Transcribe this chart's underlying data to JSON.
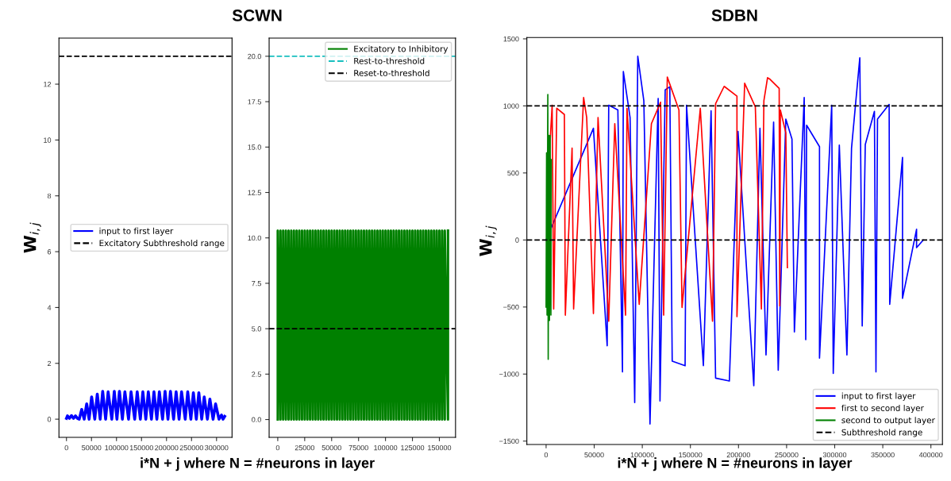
{
  "chart_data": [
    {
      "type": "line",
      "title": "SCWN",
      "xlabel": "i*N + j where N = #neurons in layer",
      "ylabel": "W$_{i,j}$",
      "legend": "center right",
      "grid": false,
      "marker": "none",
      "line_style": "solid",
      "xlim": [
        -15000,
        331000
      ],
      "xticks": [
        0,
        50000,
        100000,
        150000,
        200000,
        250000,
        300000
      ],
      "ylim": [
        -0.65,
        13.65
      ],
      "yticks": [
        0,
        2,
        4,
        6,
        8,
        10,
        12
      ],
      "series": [
        {
          "name": "input to first layer",
          "color": "#0000ff",
          "x": [
            0,
            2000,
            6000,
            10000,
            14000,
            18000,
            22000,
            25500,
            30500,
            35400,
            40400,
            45300,
            50300,
            56600,
            61600,
            67400,
            72400,
            78300,
            83300,
            90600,
            95600,
            100900,
            105900,
            111800,
            116800,
            124100,
            129100,
            136400,
            141400,
            147700,
            152700,
            158600,
            163600,
            169900,
            174900,
            180700,
            185700,
            192100,
            197100,
            202900,
            207900,
            214200,
            219200,
            225100,
            230100,
            237400,
            242400,
            248700,
            253700,
            259600,
            264600,
            270400,
            275400,
            281700,
            286700,
            293100,
            298100,
            304900,
            309900,
            313000,
            316300
          ],
          "values": [
            0.03,
            0.12,
            0.03,
            0.13,
            0.03,
            0.12,
            0.03,
            0,
            0.35,
            0,
            0.55,
            0,
            0.8,
            0,
            0.9,
            0,
            1.0,
            0,
            0.98,
            0,
            1.0,
            0,
            1.0,
            0,
            0.98,
            0,
            0.98,
            0,
            0.98,
            0,
            0.98,
            0,
            0.98,
            0,
            0.98,
            0,
            0.98,
            0,
            1.0,
            0,
            1.0,
            0,
            0.98,
            0,
            0.98,
            0,
            0.98,
            0,
            0.95,
            0,
            0.95,
            0,
            0.8,
            0,
            0.72,
            0,
            0.55,
            0,
            0.15,
            0,
            0.1
          ]
        }
      ],
      "ref_lines": [
        {
          "axis": "y",
          "value": 13,
          "label": "Excitatory Subthreshold range",
          "color": "#000000",
          "line_style": "dashed"
        }
      ]
    },
    {
      "type": "line",
      "legend": "top right",
      "grid": false,
      "marker": "none",
      "line_style": "solid",
      "xlim": [
        -8000,
        165000
      ],
      "xticks": [
        0,
        25000,
        50000,
        75000,
        100000,
        125000,
        150000
      ],
      "ylim": [
        -0.98,
        21.0
      ],
      "yticks": [
        {
          "value": 0,
          "label": "0.0"
        },
        {
          "value": 2.5,
          "label": "2.5"
        },
        {
          "value": 5,
          "label": "5.0"
        },
        {
          "value": 7.5,
          "label": "7.5"
        },
        {
          "value": 10,
          "label": "10.0"
        },
        {
          "value": 12.5,
          "label": "12.5"
        },
        {
          "value": 15,
          "label": "15.0"
        },
        {
          "value": 17.5,
          "label": "17.5"
        },
        {
          "value": 20,
          "label": "20.0"
        }
      ],
      "series": [
        {
          "name": "Excitatory to Inhibitory",
          "color": "#008000",
          "x": [
            0,
            0,
            2500,
            2500,
            5000,
            5000,
            7500,
            7500,
            10000,
            10000,
            12500,
            12500,
            15000,
            15000,
            17500,
            17500,
            20000,
            20000,
            22500,
            22500,
            25000,
            25000,
            27500,
            27500,
            30000,
            30000,
            32500,
            32500,
            35000,
            35000,
            37500,
            37500,
            40000,
            40000,
            42500,
            42500,
            45000,
            45000,
            47500,
            47500,
            50000,
            50000,
            52500,
            52500,
            55000,
            55000,
            57500,
            57500,
            60000,
            60000,
            62500,
            62500,
            65000,
            65000,
            67500,
            67500,
            70000,
            70000,
            72500,
            72500,
            75000,
            75000,
            77500,
            77500,
            80000,
            80000,
            82500,
            82500,
            85000,
            85000,
            87500,
            87500,
            90000,
            90000,
            92500,
            92500,
            95000,
            95000,
            97500,
            97500,
            100000,
            100000,
            102500,
            102500,
            105000,
            105000,
            107500,
            107500,
            110000,
            110000,
            112500,
            112500,
            115000,
            115000,
            117500,
            117500,
            120000,
            120000,
            122500,
            122500,
            125000,
            125000,
            127500,
            127500,
            130000,
            130000,
            132500,
            132500,
            135000,
            135000,
            137500,
            137500,
            140000,
            140000,
            142500,
            142500,
            145000,
            145000,
            147500,
            147500,
            150000,
            150000,
            152500,
            152500,
            155000,
            155000,
            158000,
            158000
          ],
          "values": [
            0,
            10.4,
            0,
            10.4,
            0,
            10.4,
            0,
            10.4,
            0,
            10.4,
            0,
            10.4,
            0,
            10.4,
            0,
            10.4,
            0,
            10.4,
            0,
            10.4,
            0,
            10.4,
            0,
            10.4,
            0,
            10.4,
            0,
            10.4,
            0,
            10.4,
            0,
            10.4,
            0,
            10.4,
            0,
            10.4,
            0,
            10.4,
            0,
            10.4,
            0,
            10.4,
            0,
            10.4,
            0,
            10.4,
            0,
            10.4,
            0,
            10.4,
            0,
            10.4,
            0,
            10.4,
            0,
            10.4,
            0,
            10.4,
            0,
            10.4,
            0,
            10.4,
            0,
            10.4,
            0,
            10.4,
            0,
            10.4,
            0,
            10.4,
            0,
            10.4,
            0,
            10.4,
            0,
            10.4,
            0,
            10.4,
            0,
            10.4,
            0,
            10.4,
            0,
            10.4,
            0,
            10.4,
            0,
            10.4,
            0,
            10.4,
            0,
            10.4,
            0,
            10.4,
            0,
            10.4,
            0,
            10.4,
            0,
            10.4,
            0,
            10.4,
            0,
            10.4,
            0,
            10.4,
            0,
            10.4,
            0,
            10.4,
            0,
            10.4,
            0,
            10.4,
            0,
            10.4,
            0,
            10.4,
            0,
            10.4,
            0,
            10.4,
            0,
            10.4,
            0,
            10.4,
            0,
            10.4
          ]
        }
      ],
      "ref_lines": [
        {
          "axis": "y",
          "value": 20,
          "label": "Rest-to-threshold",
          "color": "#17bfbf",
          "line_style": "dashed"
        },
        {
          "axis": "y",
          "value": 5,
          "label": "Reset-to-threshold",
          "color": "#000000",
          "line_style": "dashed"
        }
      ]
    },
    {
      "type": "line",
      "title": "SDBN",
      "xlabel": "i*N + j where N = #neurons in layer",
      "ylabel": "W$_{i,j}$",
      "legend": "bottom right",
      "grid": false,
      "marker": "none",
      "line_style": "solid",
      "xlim": [
        -20000,
        412000
      ],
      "xticks": [
        0,
        50000,
        100000,
        150000,
        200000,
        250000,
        300000,
        350000,
        400000
      ],
      "ylim": [
        -1525,
        1510
      ],
      "yticks": [
        {
          "value": -1500,
          "label": "−1500"
        },
        {
          "value": -1000,
          "label": "−1000"
        },
        {
          "value": -500,
          "label": "−500"
        },
        0,
        500,
        1000,
        1500
      ],
      "series": [
        {
          "name": "input to first layer",
          "color": "#0000ff",
          "x": [
            0,
            49200,
            63500,
            65100,
            74600,
            79400,
            80300,
            87300,
            92100,
            95300,
            101600,
            108000,
            116500,
            118400,
            123800,
            128600,
            131100,
            144500,
            146000,
            163500,
            171500,
            176200,
            190500,
            199500,
            215900,
            222300,
            228600,
            236500,
            241300,
            249200,
            255600,
            258100,
            268300,
            269900,
            270800,
            284200,
            284200,
            296900,
            298500,
            304800,
            312700,
            317500,
            326100,
            328600,
            331800,
            341300,
            342900,
            344500,
            356600,
            357200,
            370500,
            370500,
            385100,
            385100,
            392100
          ],
          "values": [
            0,
            833,
            -789,
            1005,
            970,
            -984,
            1256,
            913,
            -1213,
            1370,
            1039,
            -1373,
            1055,
            -1201,
            1119,
            1142,
            -904,
            -938,
            1005,
            -938,
            963,
            -1030,
            -1052,
            810,
            -1087,
            833,
            -858,
            879,
            -972,
            902,
            753,
            -686,
            1062,
            -744,
            856,
            696,
            -881,
            1005,
            -995,
            708,
            -858,
            685,
            1358,
            -641,
            712,
            959,
            -984,
            902,
            1011,
            -480,
            616,
            -435,
            80,
            -57,
            0
          ]
        },
        {
          "name": "first to second layer",
          "color": "#ff0000",
          "x": [
            3200,
            6300,
            7900,
            11100,
            19000,
            20000,
            27000,
            28600,
            39000,
            42200,
            49200,
            54000,
            65100,
            71400,
            82600,
            84100,
            96800,
            109500,
            119000,
            122200,
            126000,
            138100,
            141300,
            160300,
            173000,
            176200,
            185100,
            198400,
            198400,
            206400,
            217500,
            223800,
            226400,
            230200,
            232700,
            242300,
            242900,
            243500,
            249200,
            250800
          ],
          "values": [
            616,
            1005,
            -515,
            982,
            936,
            -561,
            685,
            -515,
            1062,
            913,
            -549,
            913,
            -606,
            868,
            -561,
            982,
            -480,
            868,
            1027,
            -561,
            1215,
            970,
            -503,
            982,
            -606,
            1016,
            1146,
            1073,
            -572,
            1169,
            993,
            -515,
            1039,
            1210,
            1199,
            1130,
            -492,
            970,
            799,
            -206
          ]
        },
        {
          "name": "second to output layer",
          "color": "#008000",
          "x": [
            0,
            500,
            1000,
            1800,
            2200,
            2800,
            3500,
            4200,
            5000,
            5400
          ],
          "values": [
            -500,
            650,
            -560,
            1085,
            -890,
            780,
            -600,
            780,
            -560,
            600
          ]
        }
      ],
      "ref_lines": [
        {
          "axis": "y",
          "value": 1000,
          "label": "Subthreshold range",
          "color": "#000000",
          "line_style": "dashed"
        },
        {
          "axis": "y",
          "value": 0,
          "color": "#000000",
          "line_style": "dashed"
        }
      ]
    }
  ]
}
